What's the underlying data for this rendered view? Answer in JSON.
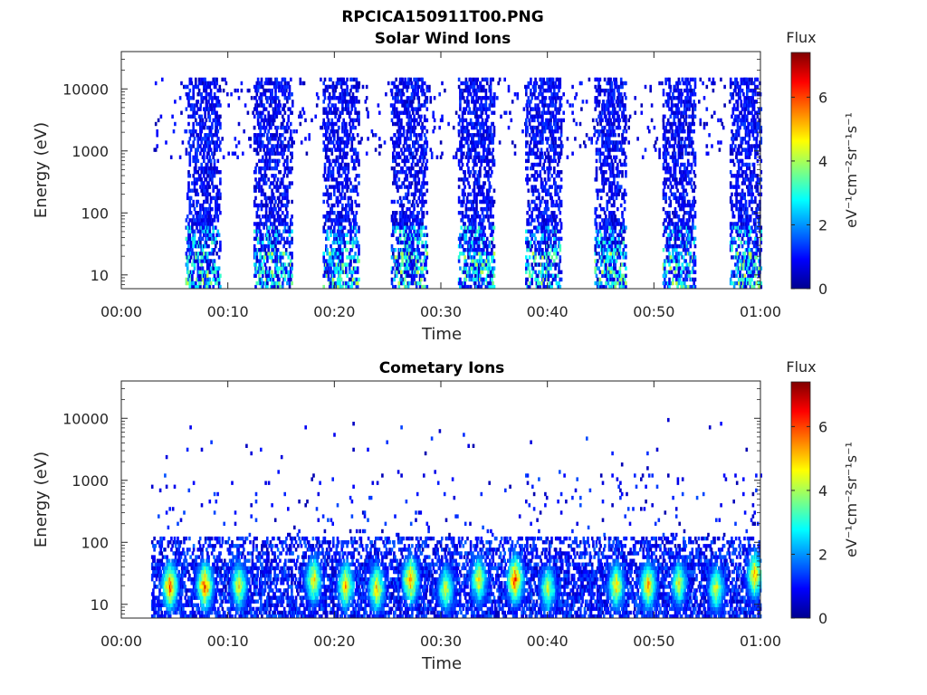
{
  "figure": {
    "title_line1": "RPCICA150911T00.PNG",
    "title_line2": "Solar Wind Ions"
  },
  "colorbar": {
    "title": "Flux",
    "unit": "eV⁻¹cm⁻²sr⁻¹s⁻¹",
    "ticks": [
      "0",
      "2",
      "4",
      "6"
    ],
    "range": [
      0,
      7.4
    ],
    "colormap": "jet",
    "colors": [
      "#00008f",
      "#0000ff",
      "#00ffff",
      "#ffff00",
      "#ff0000",
      "#800000"
    ]
  },
  "chart_data": [
    {
      "type": "heatmap",
      "title": "Solar Wind Ions",
      "xlabel": "Time",
      "ylabel": "Energy (eV)",
      "x_ticks": [
        "00:00",
        "00:10",
        "00:20",
        "00:30",
        "00:40",
        "00:50",
        "01:00"
      ],
      "xlim_minutes": [
        0,
        60
      ],
      "y_scale": "log",
      "y_ticks": [
        "10",
        "100",
        "1000",
        "10000"
      ],
      "ylim": [
        6,
        40000
      ],
      "colorbar_label": "eV⁻¹cm⁻²sr⁻¹s⁻¹",
      "bursts": [
        {
          "start_min": 6.0,
          "end_min": 9.2,
          "center_min": 7.5
        },
        {
          "start_min": 12.4,
          "end_min": 16.0,
          "center_min": 13.8
        },
        {
          "start_min": 18.9,
          "end_min": 22.2,
          "center_min": 20.5
        },
        {
          "start_min": 25.3,
          "end_min": 28.6,
          "center_min": 27.0
        },
        {
          "start_min": 31.6,
          "end_min": 35.0,
          "center_min": 33.3
        },
        {
          "start_min": 37.9,
          "end_min": 41.2,
          "center_min": 39.6
        },
        {
          "start_min": 44.4,
          "end_min": 47.3,
          "center_min": 45.9
        },
        {
          "start_min": 50.8,
          "end_min": 53.8,
          "center_min": 52.2
        },
        {
          "start_min": 57.1,
          "end_min": 60.0,
          "center_min": 58.6
        }
      ],
      "sparse_extent_min": [
        2.9,
        60.0
      ]
    },
    {
      "type": "heatmap",
      "title": "Cometary Ions",
      "xlabel": "Time",
      "ylabel": "Energy (eV)",
      "x_ticks": [
        "00:00",
        "00:10",
        "00:20",
        "00:30",
        "00:40",
        "00:50",
        "01:00"
      ],
      "xlim_minutes": [
        0,
        60
      ],
      "y_scale": "log",
      "y_ticks": [
        "10",
        "100",
        "1000",
        "10000"
      ],
      "ylim": [
        6,
        40000
      ],
      "colorbar_label": "eV⁻¹cm⁻²sr⁻¹s⁻¹",
      "peaks": [
        {
          "time_min": 4.5,
          "energy_eV": 20,
          "flux": 6.3
        },
        {
          "time_min": 7.8,
          "energy_eV": 20,
          "flux": 6.6
        },
        {
          "time_min": 11.0,
          "energy_eV": 20,
          "flux": 5.2
        },
        {
          "time_min": 18.0,
          "energy_eV": 25,
          "flux": 5.5
        },
        {
          "time_min": 21.0,
          "energy_eV": 20,
          "flux": 5.8
        },
        {
          "time_min": 23.9,
          "energy_eV": 18,
          "flux": 5.6
        },
        {
          "time_min": 27.1,
          "energy_eV": 25,
          "flux": 6.2
        },
        {
          "time_min": 30.4,
          "energy_eV": 18,
          "flux": 4.9
        },
        {
          "time_min": 33.5,
          "energy_eV": 25,
          "flux": 5.4
        },
        {
          "time_min": 36.9,
          "energy_eV": 25,
          "flux": 6.8
        },
        {
          "time_min": 40.0,
          "energy_eV": 18,
          "flux": 4.9
        },
        {
          "time_min": 46.4,
          "energy_eV": 20,
          "flux": 5.4
        },
        {
          "time_min": 49.4,
          "energy_eV": 20,
          "flux": 5.8
        },
        {
          "time_min": 52.3,
          "energy_eV": 22,
          "flux": 4.9
        },
        {
          "time_min": 55.8,
          "energy_eV": 18,
          "flux": 5.0
        },
        {
          "time_min": 59.4,
          "energy_eV": 30,
          "flux": 5.8
        }
      ],
      "sparse_extent_min": [
        2.8,
        60.0
      ]
    }
  ]
}
